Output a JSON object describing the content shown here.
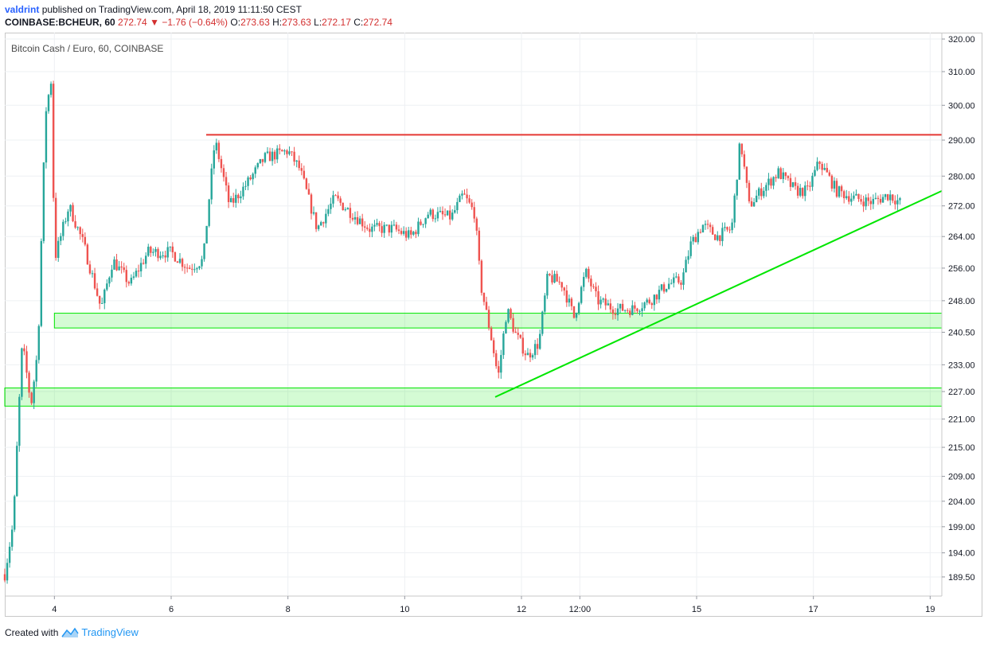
{
  "header": {
    "user": "valdrint",
    "published_text": "published on TradingView.com, April 18, 2019 11:11:50 CEST",
    "symbol": "COINBASE:BCHEUR, 60",
    "last": "272.74",
    "change": "−1.76 (−0.64%)",
    "open_label": "O:",
    "open": "273.63",
    "high_label": "H:",
    "high": "273.63",
    "low_label": "L:",
    "low": "272.17",
    "close_label": "C:",
    "close": "272.74"
  },
  "footer": {
    "created_with": "Created with",
    "brand": "TradingView"
  },
  "colors": {
    "up": "#26a69a",
    "down": "#ef5350",
    "resistance": "#e53935",
    "support": "#00e600",
    "grid": "#eef0f3"
  },
  "chart_data": {
    "type": "candlestick",
    "title": "Bitcoin Cash / Euro, 60, COINBASE",
    "price_scale": "log",
    "ylim": [
      186,
      322
    ],
    "y_ticks": [
      "320.00",
      "310.00",
      "300.00",
      "290.00",
      "280.00",
      "272.00",
      "264.00",
      "256.00",
      "248.00",
      "240.50",
      "233.00",
      "227.00",
      "221.00",
      "215.00",
      "209.00",
      "204.00",
      "199.00",
      "194.00",
      "189.50"
    ],
    "x_ticks": [
      "4",
      "6",
      "8",
      "10",
      "12",
      "12:00",
      "15",
      "17",
      "19"
    ],
    "x_tick_positions_days": [
      4,
      6,
      8,
      10,
      12,
      13,
      15,
      17,
      19
    ],
    "xlim_days": [
      3.15,
      19.2
    ],
    "grid": true,
    "close_path": [
      [
        3.15,
        190
      ],
      [
        3.3,
        200
      ],
      [
        3.45,
        238
      ],
      [
        3.6,
        224
      ],
      [
        3.72,
        237
      ],
      [
        3.85,
        298
      ],
      [
        3.95,
        308
      ],
      [
        4.0,
        258
      ],
      [
        4.25,
        272
      ],
      [
        4.5,
        262
      ],
      [
        4.8,
        246
      ],
      [
        5.0,
        258
      ],
      [
        5.3,
        252
      ],
      [
        5.6,
        260
      ],
      [
        6.0,
        260
      ],
      [
        6.3,
        256
      ],
      [
        6.55,
        258
      ],
      [
        6.75,
        290
      ],
      [
        7.0,
        272
      ],
      [
        7.3,
        278
      ],
      [
        7.6,
        285
      ],
      [
        8.0,
        287
      ],
      [
        8.2,
        282
      ],
      [
        8.5,
        266
      ],
      [
        8.8,
        274
      ],
      [
        9.1,
        270
      ],
      [
        9.4,
        266
      ],
      [
        9.8,
        266
      ],
      [
        10.1,
        264
      ],
      [
        10.4,
        270
      ],
      [
        10.8,
        269
      ],
      [
        11.0,
        275
      ],
      [
        11.2,
        270
      ],
      [
        11.3,
        252
      ],
      [
        11.5,
        238
      ],
      [
        11.6,
        230
      ],
      [
        11.75,
        246
      ],
      [
        11.9,
        240
      ],
      [
        12.1,
        235
      ],
      [
        12.3,
        238
      ],
      [
        12.45,
        254
      ],
      [
        12.7,
        252
      ],
      [
        12.9,
        244
      ],
      [
        13.1,
        255
      ],
      [
        13.3,
        248
      ],
      [
        13.6,
        246
      ],
      [
        13.9,
        246
      ],
      [
        14.2,
        248
      ],
      [
        14.5,
        252
      ],
      [
        14.75,
        253
      ],
      [
        14.9,
        262
      ],
      [
        15.1,
        267
      ],
      [
        15.35,
        264
      ],
      [
        15.6,
        266
      ],
      [
        15.75,
        290
      ],
      [
        15.9,
        272
      ],
      [
        16.1,
        276
      ],
      [
        16.4,
        281
      ],
      [
        16.7,
        276
      ],
      [
        16.9,
        276
      ],
      [
        17.1,
        284
      ],
      [
        17.4,
        276
      ],
      [
        17.7,
        274
      ],
      [
        18.0,
        273
      ],
      [
        18.3,
        275
      ],
      [
        18.5,
        272.7
      ]
    ],
    "resistance": {
      "price": 291.5,
      "x_start_day": 6.6,
      "x_end_day": 19.2
    },
    "support_zones": [
      {
        "low": 241.5,
        "high": 245.0,
        "x_start_day": 4.0,
        "x_end_day": 19.2
      },
      {
        "low": 223.8,
        "high": 227.8,
        "x_start_day": 3.15,
        "x_end_day": 19.2
      }
    ],
    "trendline": {
      "start": [
        11.55,
        225.8
      ],
      "end": [
        19.2,
        276.0
      ]
    }
  }
}
